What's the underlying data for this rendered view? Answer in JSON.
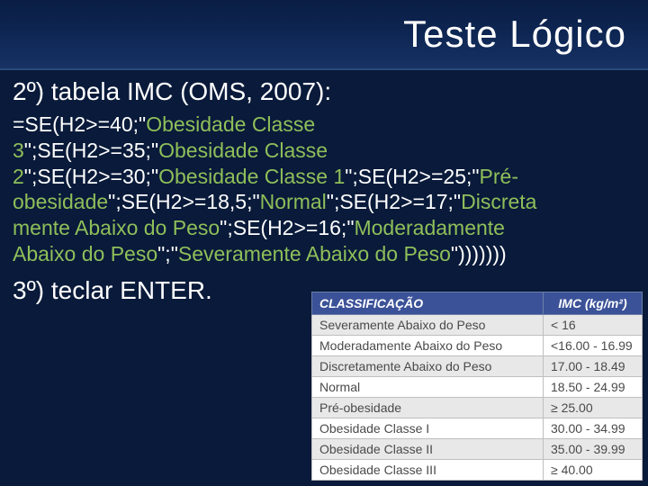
{
  "header": {
    "title": "Teste Lógico"
  },
  "step2": {
    "heading": "2º) tabela IMC (OMS, 2007):"
  },
  "formula": {
    "p1": "=SE(H2>=40;",
    "q1a": "\"",
    "g1": "Obesidade Classe",
    "br1": "",
    "g1b": "3",
    "q1b": "\"",
    "p2": ";SE(H2>=35;",
    "q2a": "\"",
    "g2": "Obesidade Classe",
    "br2": "",
    "g2b": "2",
    "q2b": "\"",
    "p3": ";SE(H2>=30;",
    "q3a": "\"",
    "g3": "Obesidade Classe 1",
    "q3b": "\"",
    "p4": ";SE(H2>=25;",
    "q4a": "\"",
    "g4a": "Pré-",
    "br3": "",
    "g4b": "obesidade",
    "q4b": "\"",
    "p5": ";SE(H2>=18,5;",
    "q5a": "\"",
    "g5": "Normal",
    "q5b": "\"",
    "p6": ";SE(H2>=17;",
    "q6a": "\"",
    "g6a": "Discreta",
    "br4": "",
    "g6b": "mente Abaixo do Peso",
    "q6b": "\"",
    "p7": ";SE(H2>=16;",
    "q7a": "\"",
    "g7a": "Moderadamente",
    "br5": "",
    "g7b": "Abaixo do Peso",
    "q7b": "\"",
    "p8": ";",
    "q8a": "\"",
    "g8": "Severamente Abaixo do Peso",
    "q8b": "\"",
    "p9": ")))))))"
  },
  "step3": {
    "text": "3º) teclar ENTER."
  },
  "table": {
    "headers": {
      "col1": "CLASSIFICAÇÃO",
      "col2": "IMC (kg/m²)"
    },
    "rows": [
      {
        "c1": "Severamente Abaixo do Peso",
        "c2": "< 16"
      },
      {
        "c1": "Moderadamente Abaixo do Peso",
        "c2": "<16.00 - 16.99"
      },
      {
        "c1": "Discretamente Abaixo do Peso",
        "c2": "17.00 - 18.49"
      },
      {
        "c1": "Normal",
        "c2": "18.50 - 24.99"
      },
      {
        "c1": "Pré-obesidade",
        "c2": "≥ 25.00"
      },
      {
        "c1": "Obesidade Classe I",
        "c2": "30.00 - 34.99"
      },
      {
        "c1": "Obesidade Classe II",
        "c2": "35.00 - 39.99"
      },
      {
        "c1": "Obesidade Classe III",
        "c2": "≥ 40.00"
      }
    ]
  }
}
